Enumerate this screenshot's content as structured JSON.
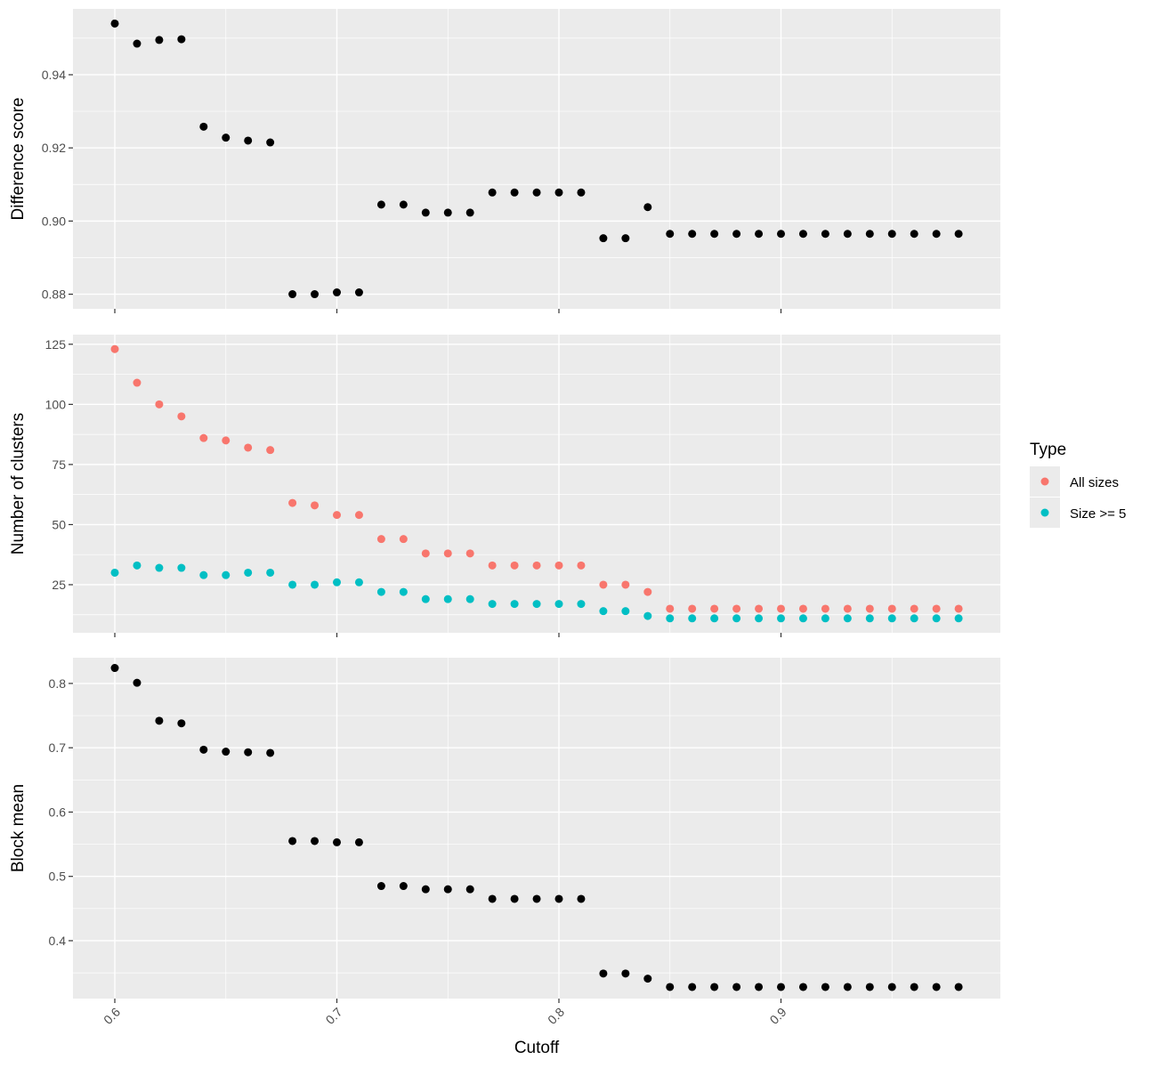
{
  "chart_data": {
    "type": "scatter",
    "xlabel": "Cutoff",
    "x_ticks": [
      0.6,
      0.7,
      0.8,
      0.9
    ],
    "x_tick_labels": [
      "0.6",
      "0.7",
      "0.8",
      "0.9"
    ],
    "xlim": [
      0.6,
      0.98
    ],
    "x": [
      0.6,
      0.61,
      0.62,
      0.63,
      0.64,
      0.65,
      0.66,
      0.67,
      0.68,
      0.69,
      0.7,
      0.71,
      0.72,
      0.73,
      0.74,
      0.75,
      0.76,
      0.77,
      0.78,
      0.79,
      0.8,
      0.81,
      0.82,
      0.83,
      0.84,
      0.85,
      0.86,
      0.87,
      0.88,
      0.89,
      0.9,
      0.91,
      0.92,
      0.93,
      0.94,
      0.95,
      0.96,
      0.97,
      0.98
    ],
    "grid": true,
    "legend": {
      "title": "Type",
      "placement": "right",
      "entries": [
        {
          "label": "All sizes",
          "color": "#F8766D"
        },
        {
          "label": "Size >= 5",
          "color": "#00BFC4"
        }
      ]
    },
    "panels": [
      {
        "ylabel": "Difference score",
        "y_ticks": [
          0.88,
          0.9,
          0.92,
          0.94
        ],
        "y_tick_labels": [
          "0.88",
          "0.90",
          "0.92",
          "0.94"
        ],
        "ylim": [
          0.876,
          0.958
        ],
        "series": [
          {
            "color": "#000000",
            "values": [
              0.954,
              0.9485,
              0.9495,
              0.9497,
              0.9258,
              0.9228,
              0.922,
              0.9215,
              0.88,
              0.88,
              0.8805,
              0.8805,
              0.9045,
              0.9045,
              0.9023,
              0.9023,
              0.9023,
              0.9078,
              0.9078,
              0.9078,
              0.9078,
              0.9078,
              0.8953,
              0.8953,
              0.9038,
              0.8965,
              0.8965,
              0.8965,
              0.8965,
              0.8965,
              0.8965,
              0.8965,
              0.8965,
              0.8965,
              0.8965,
              0.8965,
              0.8965,
              0.8965,
              0.8965
            ]
          }
        ]
      },
      {
        "ylabel": "Number of clusters",
        "y_ticks": [
          25,
          50,
          75,
          100,
          125
        ],
        "y_tick_labels": [
          "25",
          "50",
          "75",
          "100",
          "125"
        ],
        "ylim": [
          5,
          129
        ],
        "series": [
          {
            "name": "All sizes",
            "color": "#F8766D",
            "values": [
              123,
              109,
              100,
              95,
              86,
              85,
              82,
              81,
              59,
              58,
              54,
              54,
              44,
              44,
              38,
              38,
              38,
              33,
              33,
              33,
              33,
              33,
              25,
              25,
              22,
              15,
              15,
              15,
              15,
              15,
              15,
              15,
              15,
              15,
              15,
              15,
              15,
              15,
              15
            ]
          },
          {
            "name": "Size >= 5",
            "color": "#00BFC4",
            "values": [
              30,
              33,
              32,
              32,
              29,
              29,
              30,
              30,
              25,
              25,
              26,
              26,
              22,
              22,
              19,
              19,
              19,
              17,
              17,
              17,
              17,
              17,
              14,
              14,
              12,
              11,
              11,
              11,
              11,
              11,
              11,
              11,
              11,
              11,
              11,
              11,
              11,
              11,
              11
            ]
          }
        ]
      },
      {
        "ylabel": "Block mean",
        "y_ticks": [
          0.4,
          0.5,
          0.6,
          0.7,
          0.8
        ],
        "y_tick_labels": [
          "0.4",
          "0.5",
          "0.6",
          "0.7",
          "0.8"
        ],
        "ylim": [
          0.31,
          0.84
        ],
        "series": [
          {
            "color": "#000000",
            "values": [
              0.824,
              0.801,
              0.742,
              0.738,
              0.697,
              0.694,
              0.693,
              0.692,
              0.555,
              0.555,
              0.553,
              0.553,
              0.485,
              0.485,
              0.48,
              0.48,
              0.48,
              0.465,
              0.465,
              0.465,
              0.465,
              0.465,
              0.349,
              0.349,
              0.341,
              0.328,
              0.328,
              0.328,
              0.328,
              0.328,
              0.328,
              0.328,
              0.328,
              0.328,
              0.328,
              0.328,
              0.328,
              0.328,
              0.328
            ]
          }
        ]
      }
    ]
  }
}
